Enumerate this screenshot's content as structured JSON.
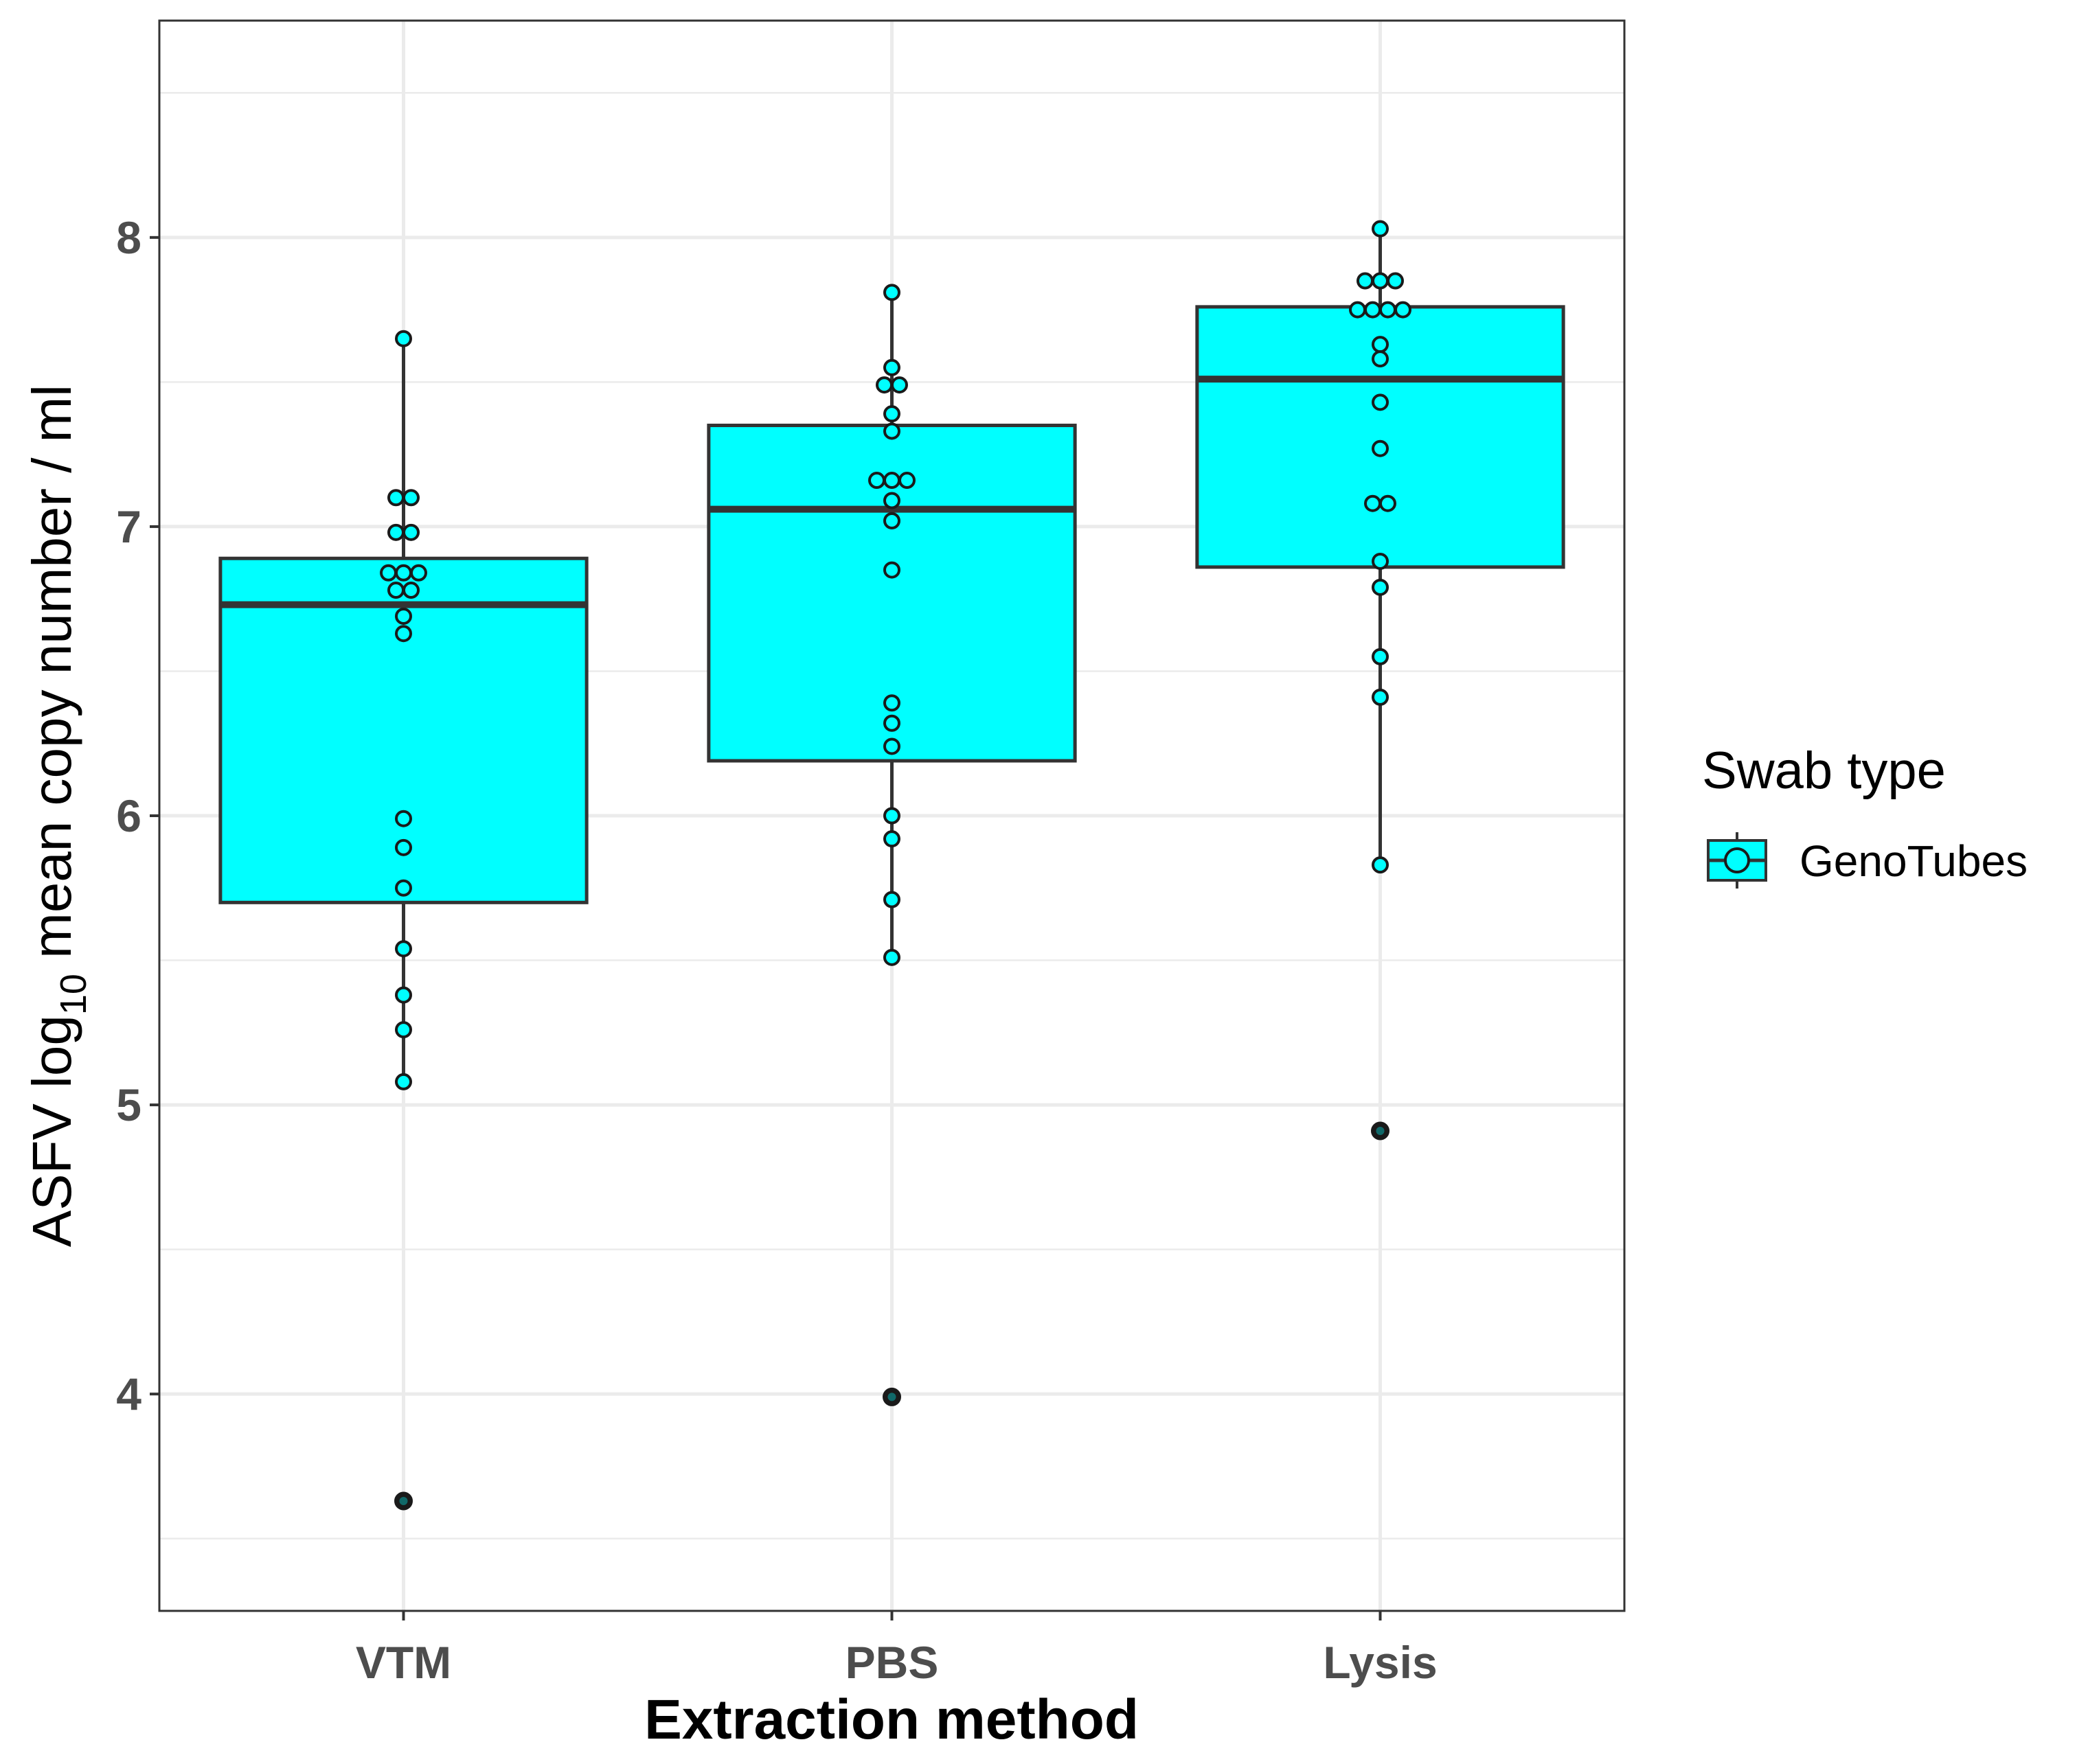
{
  "chart_data": {
    "type": "boxplot",
    "xlabel": "Extraction method",
    "ylabel_prefix": "ASFV  log",
    "ylabel_subscript": "10",
    "ylabel_suffix": " mean copy number / ml",
    "ylim": [
      3.25,
      8.75
    ],
    "yticks": [
      4,
      5,
      6,
      7,
      8
    ],
    "ytick_labels": [
      "4",
      "5",
      "6",
      "7",
      "8"
    ],
    "grid": true,
    "categories": [
      "VTM",
      "PBS",
      "Lysis"
    ],
    "legend": {
      "title": "Swab type",
      "entries": [
        "GenoTubes"
      ],
      "position": "right"
    },
    "colors": {
      "fill": "#00ffff",
      "line": "#333333",
      "grid": "#ebebeb",
      "outlier": "#1a1a1a"
    },
    "series": [
      {
        "name": "GenoTubes",
        "boxes": [
          {
            "category": "VTM",
            "q1": 5.7,
            "median": 6.73,
            "q3": 6.89,
            "whisker_low": 5.08,
            "whisker_high": 7.65,
            "outliers": [
              3.63
            ],
            "points": [
              7.65,
              7.1,
              7.1,
              6.98,
              6.98,
              6.84,
              6.84,
              6.84,
              6.78,
              6.78,
              6.69,
              6.63,
              5.99,
              5.89,
              5.75,
              5.54,
              5.38,
              5.26,
              5.08,
              3.63
            ]
          },
          {
            "category": "PBS",
            "q1": 6.19,
            "median": 7.06,
            "q3": 7.35,
            "whisker_low": 5.51,
            "whisker_high": 7.81,
            "outliers": [
              3.99
            ],
            "points": [
              7.81,
              7.55,
              7.49,
              7.49,
              7.39,
              7.33,
              7.16,
              7.16,
              7.16,
              7.09,
              7.02,
              6.85,
              6.39,
              6.32,
              6.24,
              6.0,
              5.92,
              5.71,
              5.51,
              3.99
            ]
          },
          {
            "category": "Lysis",
            "q1": 6.86,
            "median": 7.51,
            "q3": 7.76,
            "whisker_low": 5.83,
            "whisker_high": 8.03,
            "outliers": [
              4.91
            ],
            "points": [
              8.03,
              7.85,
              7.85,
              7.85,
              7.75,
              7.75,
              7.75,
              7.75,
              7.63,
              7.58,
              7.43,
              7.27,
              7.08,
              7.08,
              6.88,
              6.79,
              6.55,
              6.41,
              5.83,
              4.91
            ]
          }
        ]
      }
    ]
  }
}
